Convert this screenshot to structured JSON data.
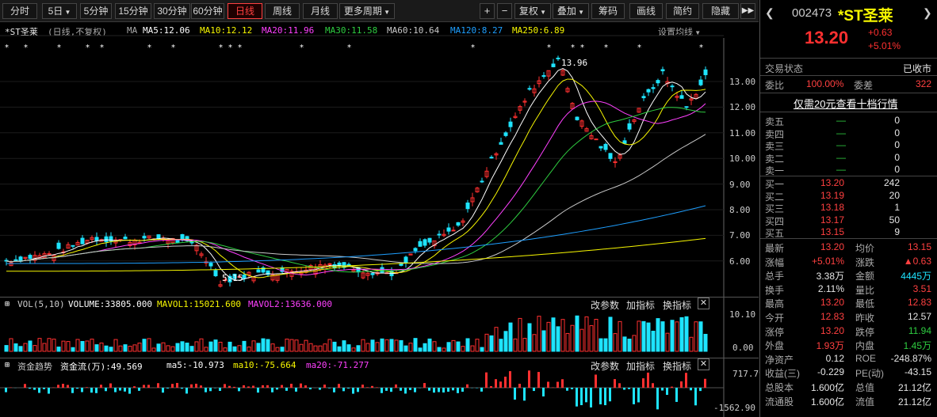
{
  "toolbar": {
    "periods": [
      "分时",
      "5日",
      "5分钟",
      "15分钟",
      "30分钟",
      "60分钟",
      "日线",
      "周线",
      "月线",
      "更多周期"
    ],
    "active_period": "日线",
    "actions": [
      "复权",
      "叠加",
      "筹码",
      "画线",
      "简约",
      "隐藏"
    ],
    "plus_label": "+",
    "minus_label": "−"
  },
  "chart_header": {
    "title": "*ST圣莱",
    "subtitle": "(日线,不复权)",
    "ma_label": "MA",
    "ma5": "MA5:12.06",
    "ma10": "MA10:12.12",
    "ma20": "MA20:11.96",
    "ma30": "MA30:11.58",
    "ma60": "MA60:10.64",
    "ma120": "MA120:8.27",
    "ma250": "MA250:6.89",
    "settings": "设置均线"
  },
  "price_axis": [
    "13.00",
    "12.00",
    "11.00",
    "10.00",
    "9.00",
    "8.00",
    "7.00",
    "6.00"
  ],
  "annotations": {
    "high": "13.96",
    "low": "5.15"
  },
  "volume": {
    "label": "VOL(5,10)",
    "volume": "VOLUME:33805.000",
    "mavol1": "MAVOL1:15021.600",
    "mavol2": "MAVOL2:13636.000",
    "axis_top": "10.10",
    "axis_bottom": "0.00",
    "buttons": [
      "改参数",
      "加指标",
      "换指标"
    ]
  },
  "fund": {
    "label": "资金趋势",
    "flow": "资金流(万):49.569",
    "ma5": "ma5:-10.973",
    "ma10": "ma10:-75.664",
    "ma20": "ma20:-71.277",
    "axis_top": "717.79",
    "axis_bottom": "-1562.90",
    "buttons": [
      "改参数",
      "加指标",
      "换指标"
    ]
  },
  "quote": {
    "code": "002473",
    "name": "*ST圣莱",
    "price": "13.20",
    "change": "+0.63",
    "change_pct": "+5.01%",
    "status_label": "交易状态",
    "status_value": "已收市",
    "weibi_label": "委比",
    "weibi_value": "100.00%",
    "weicha_label": "委差",
    "weicha_value": "322",
    "promo": "仅需20元查看十档行情",
    "asks": [
      {
        "label": "卖五",
        "price": "—",
        "vol": "0"
      },
      {
        "label": "卖四",
        "price": "—",
        "vol": "0"
      },
      {
        "label": "卖三",
        "price": "—",
        "vol": "0"
      },
      {
        "label": "卖二",
        "price": "—",
        "vol": "0"
      },
      {
        "label": "卖一",
        "price": "—",
        "vol": "0"
      }
    ],
    "bids": [
      {
        "label": "买一",
        "price": "13.20",
        "vol": "242"
      },
      {
        "label": "买二",
        "price": "13.19",
        "vol": "20"
      },
      {
        "label": "买三",
        "price": "13.18",
        "vol": "1"
      },
      {
        "label": "买四",
        "price": "13.17",
        "vol": "50"
      },
      {
        "label": "买五",
        "price": "13.15",
        "vol": "9"
      }
    ],
    "stats": [
      {
        "l1": "最新",
        "v1": "13.20",
        "c1": "red",
        "l2": "均价",
        "v2": "13.15",
        "c2": "red"
      },
      {
        "l1": "涨幅",
        "v1": "+5.01%",
        "c1": "red",
        "l2": "涨跌",
        "v2": "▲0.63",
        "c2": "red"
      },
      {
        "l1": "总手",
        "v1": "3.38万",
        "c1": "white",
        "l2": "金额",
        "v2": "4445万",
        "c2": "cyan"
      },
      {
        "l1": "换手",
        "v1": "2.11%",
        "c1": "white",
        "l2": "量比",
        "v2": "3.51",
        "c2": "red"
      },
      {
        "l1": "最高",
        "v1": "13.20",
        "c1": "red",
        "l2": "最低",
        "v2": "12.83",
        "c2": "red"
      },
      {
        "l1": "今开",
        "v1": "12.83",
        "c1": "red",
        "l2": "昨收",
        "v2": "12.57",
        "c2": "white"
      },
      {
        "l1": "涨停",
        "v1": "13.20",
        "c1": "red",
        "l2": "跌停",
        "v2": "11.94",
        "c2": "green"
      },
      {
        "l1": "外盘",
        "v1": "1.93万",
        "c1": "red",
        "l2": "内盘",
        "v2": "1.45万",
        "c2": "green"
      },
      {
        "l1": "净资产",
        "v1": "0.12",
        "c1": "white",
        "l2": "ROE",
        "v2": "-248.87%",
        "c2": "white"
      },
      {
        "l1": "收益(三)",
        "v1": "-0.229",
        "c1": "white",
        "l2": "PE(动)",
        "v2": "-43.15",
        "c2": "white"
      },
      {
        "l1": "总股本",
        "v1": "1.600亿",
        "c1": "white",
        "l2": "总值",
        "v2": "21.12亿",
        "c2": "white"
      },
      {
        "l1": "流通股",
        "v1": "1.600亿",
        "c1": "white",
        "l2": "流值",
        "v2": "21.12亿",
        "c2": "white"
      }
    ]
  },
  "colors": {
    "up": "#ff3030",
    "down": "#1ee4ff",
    "ma5": "#ffffff",
    "ma10": "#f7f700",
    "ma20": "#ff40ff",
    "ma30": "#2ecc40",
    "ma60": "#c8c8c8",
    "ma120": "#1e9fff",
    "ma250": "#f7f700"
  }
}
